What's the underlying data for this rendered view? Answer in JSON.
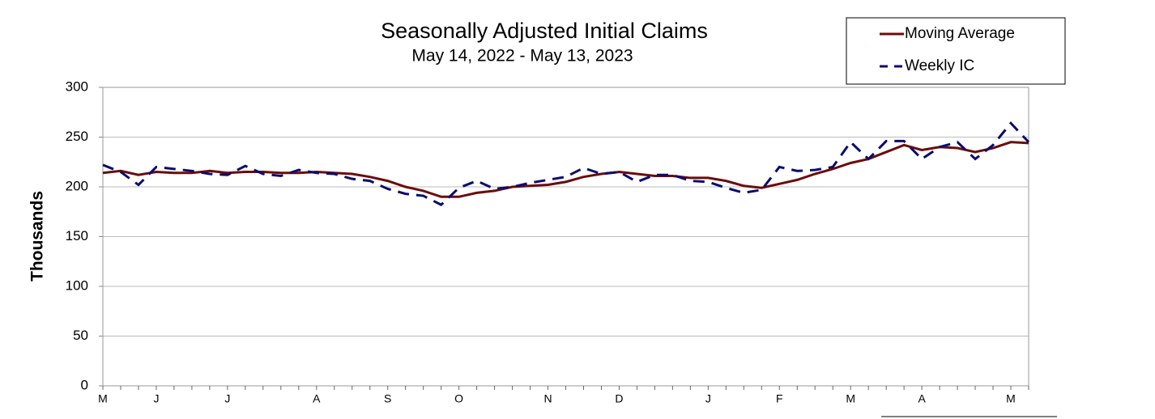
{
  "chart_data": {
    "type": "line",
    "title": "Seasonally Adjusted Initial Claims",
    "subtitle": "May 14, 2022 - May 13, 2023",
    "y_label": "Thousands",
    "categories": [
      "M",
      null,
      null,
      "J",
      null,
      null,
      null,
      "J",
      null,
      null,
      null,
      null,
      "A",
      null,
      null,
      null,
      "S",
      null,
      null,
      null,
      "O",
      null,
      null,
      null,
      null,
      "N",
      null,
      null,
      null,
      "D",
      null,
      null,
      null,
      null,
      "J",
      null,
      null,
      null,
      "F",
      null,
      null,
      null,
      "M",
      null,
      null,
      null,
      "A",
      null,
      null,
      null,
      null,
      "M",
      null
    ],
    "series": [
      {
        "name": "Moving Average",
        "color": "#6b0c0c",
        "dash": false,
        "values": [
          214,
          216,
          212,
          215,
          214,
          214,
          216,
          214,
          215,
          215,
          214,
          214,
          215,
          214,
          213,
          210,
          206,
          200,
          196,
          190,
          190,
          194,
          196,
          200,
          201,
          202,
          205,
          210,
          213,
          215,
          213,
          211,
          211,
          209,
          209,
          206,
          201,
          199,
          203,
          207,
          213,
          218,
          224,
          228,
          235,
          242,
          237,
          240,
          239,
          235,
          239,
          245,
          244
        ]
      },
      {
        "name": "Weekly IC",
        "color": "#0c0c6e",
        "dash": true,
        "values": [
          222,
          215,
          202,
          220,
          218,
          216,
          213,
          212,
          221,
          213,
          211,
          217,
          214,
          213,
          208,
          206,
          198,
          193,
          191,
          182,
          199,
          206,
          198,
          200,
          204,
          207,
          210,
          219,
          213,
          215,
          205,
          212,
          212,
          206,
          205,
          199,
          194,
          197,
          220,
          216,
          217,
          220,
          245,
          228,
          246,
          246,
          228,
          240,
          245,
          228,
          242,
          264,
          245
        ]
      }
    ],
    "ylim": [
      0,
      300
    ],
    "yticks": [
      0,
      50,
      100,
      150,
      200,
      250,
      300
    ],
    "grid": true,
    "legend": "top-right"
  }
}
